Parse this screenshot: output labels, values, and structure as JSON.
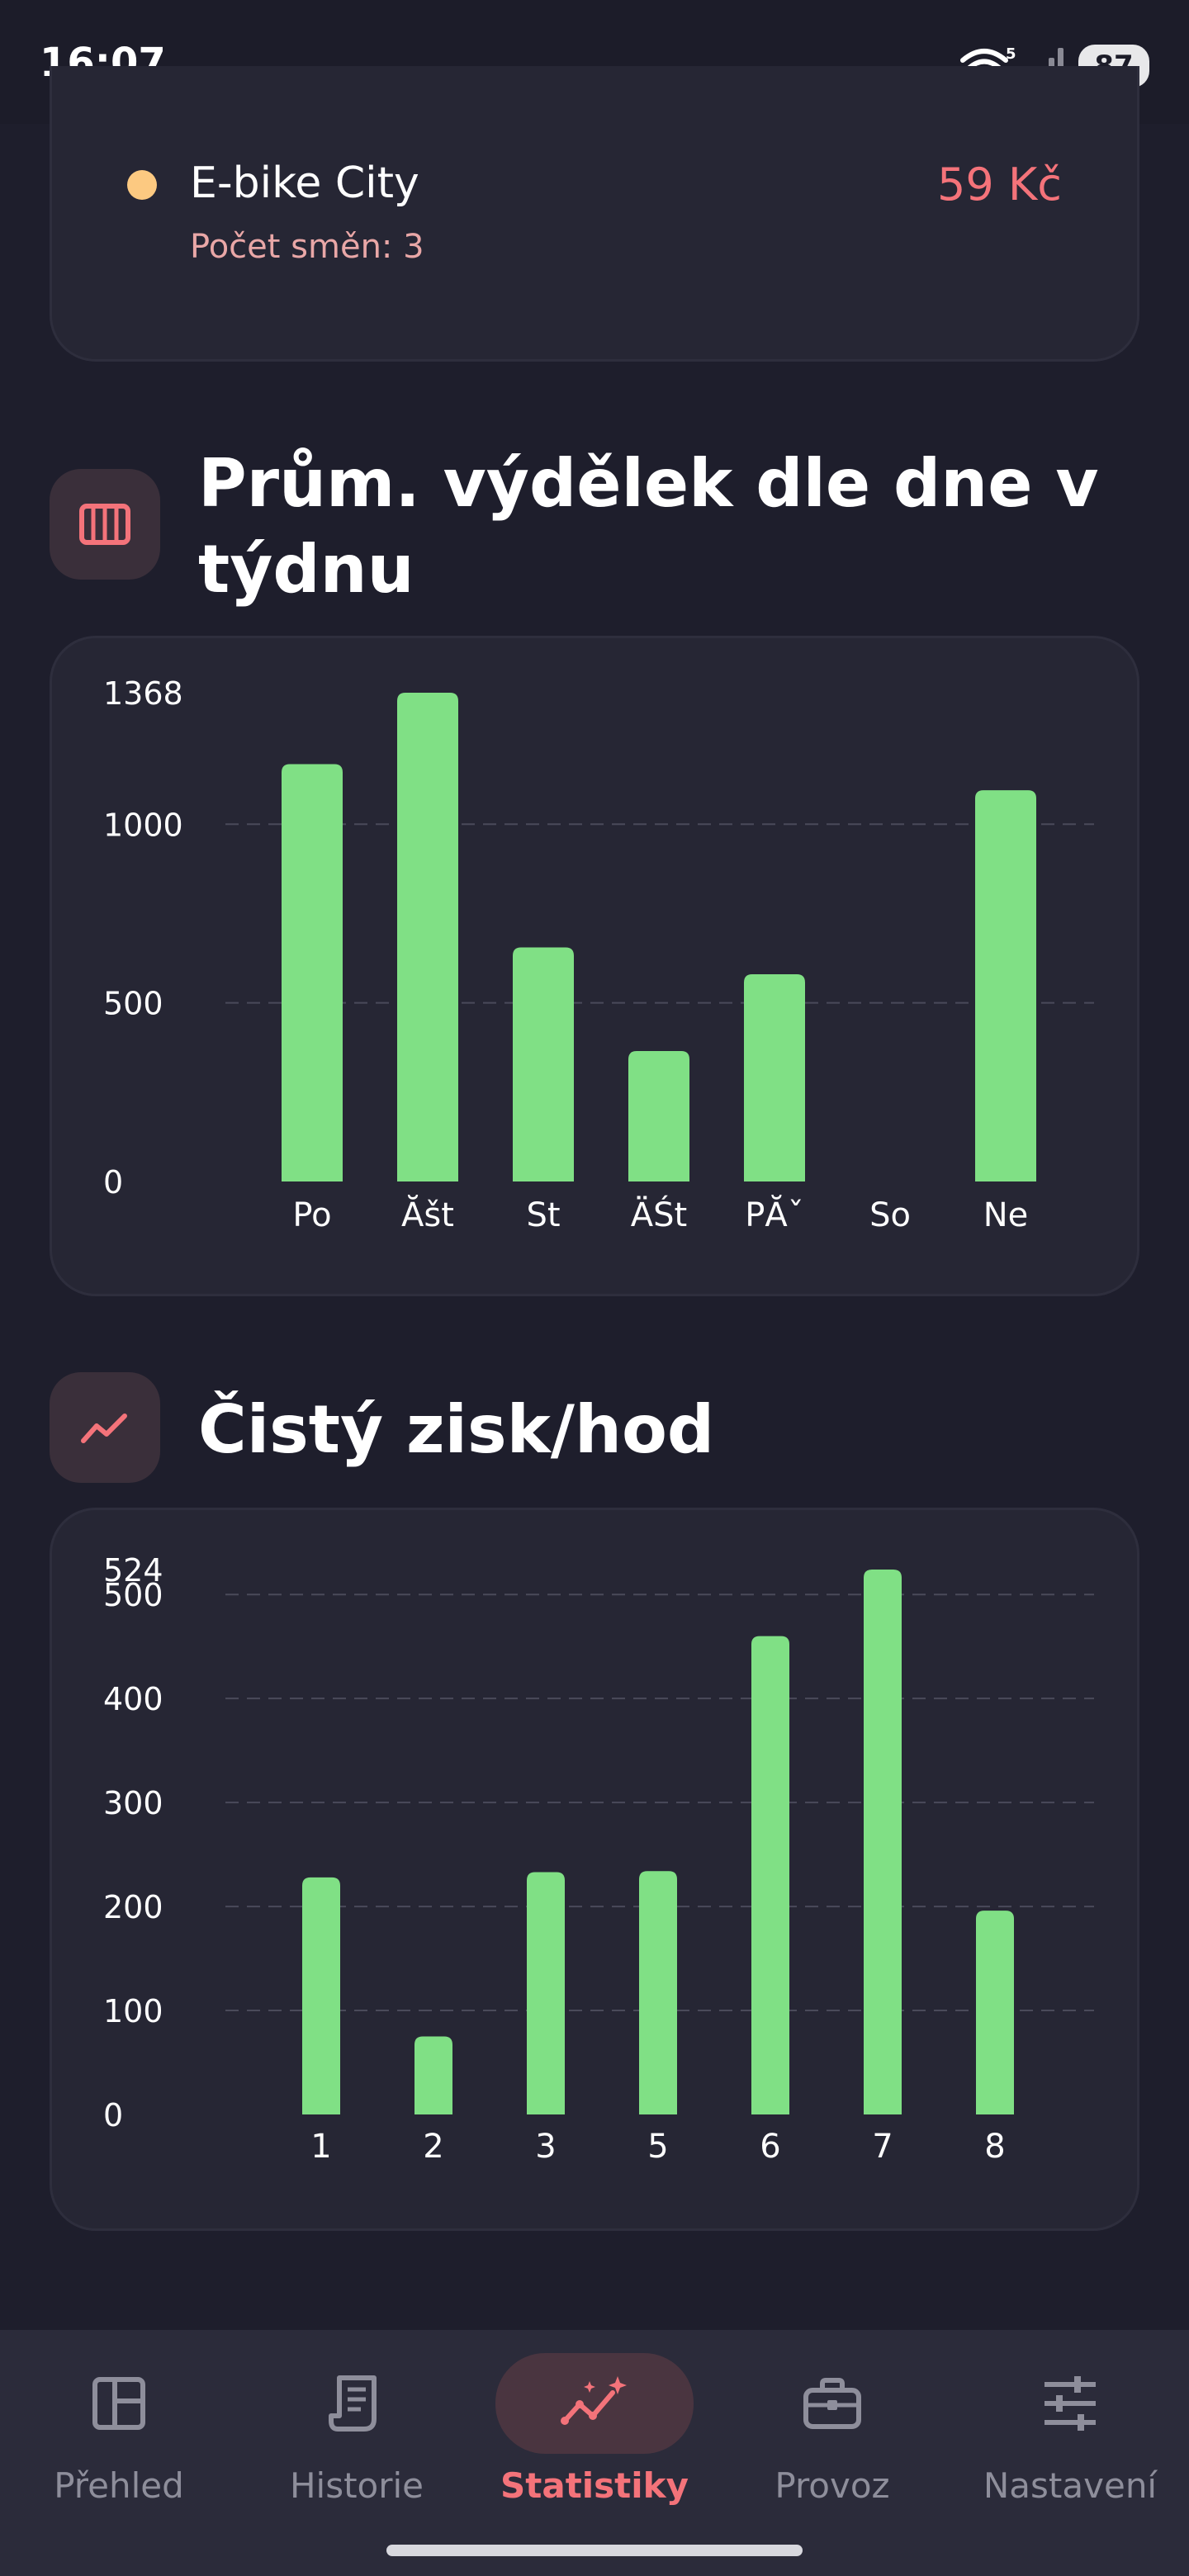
{
  "status_bar": {
    "time": "16:07",
    "battery": "87",
    "network": "5"
  },
  "vehicle_card": {
    "name": "E-bike City",
    "price": "59 Kč",
    "shifts": "Počet směn: 3",
    "dot_color": "#fcc981"
  },
  "section_weekday": {
    "title_line1": "Prům. výdělek dle dne v",
    "title_line2": "týdnu",
    "icon": "columns-icon"
  },
  "section_hourly": {
    "title": "Čistý zisk/hod",
    "icon": "trend-icon"
  },
  "chart_data": [
    {
      "type": "bar",
      "categories": [
        "Po",
        "Ăšt",
        "St",
        "ÄŚt",
        "PĂˇ",
        "So",
        "Ne"
      ],
      "values": [
        1168,
        1368,
        655,
        365,
        580,
        0,
        1095
      ],
      "yticks": [
        "0",
        "500",
        "1000",
        "1368"
      ],
      "ylim": [
        0,
        1368
      ],
      "grid": true,
      "bar_color": "#80e085"
    },
    {
      "type": "bar",
      "categories": [
        "1",
        "2",
        "3",
        "5",
        "6",
        "7",
        "8"
      ],
      "values": [
        228,
        75,
        233,
        234,
        460,
        524,
        196
      ],
      "yticks": [
        "0",
        "100",
        "200",
        "300",
        "400",
        "500",
        "524"
      ],
      "ylim": [
        0,
        524
      ],
      "grid": true,
      "bar_color": "#80e085"
    }
  ],
  "nav": {
    "items": [
      {
        "label": "Přehled",
        "icon": "dashboard-icon",
        "active": false
      },
      {
        "label": "Historie",
        "icon": "receipt-icon",
        "active": false
      },
      {
        "label": "Statistiky",
        "icon": "stats-sparkle-icon",
        "active": true
      },
      {
        "label": "Provoz",
        "icon": "briefcase-icon",
        "active": false
      },
      {
        "label": "Nastavení",
        "icon": "sliders-icon",
        "active": false
      }
    ]
  },
  "colors": {
    "accent": "#f4737a",
    "bar": "#80e085",
    "background": "#1e1e2c",
    "card": "#262634"
  }
}
